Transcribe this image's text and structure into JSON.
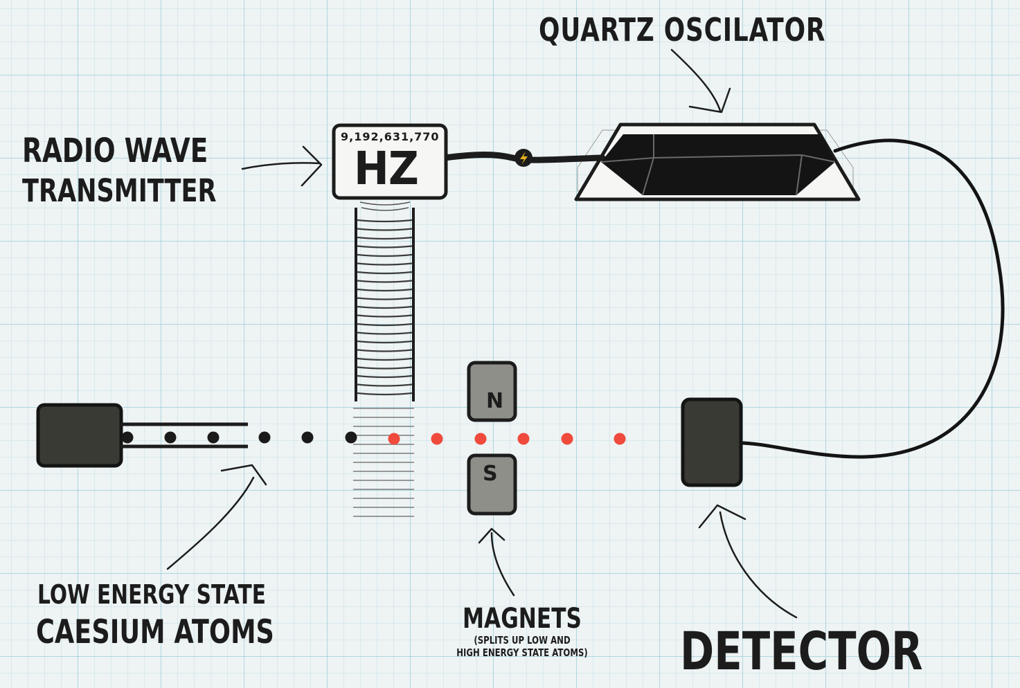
{
  "transmitter": {
    "label_line1": "RADIO WAVE",
    "label_line2": "TRANSMITTER",
    "frequency": "9,192,631,770",
    "unit": "HZ"
  },
  "oscillator": {
    "label": "QUARTZ OSCILATOR"
  },
  "atoms": {
    "label_line1": "LOW ENERGY STATE",
    "label_line2": "CAESIUM ATOMS"
  },
  "magnets": {
    "label": "MAGNETS",
    "note_line1": "(SPLITS UP LOW AND",
    "note_line2": "HIGH ENERGY STATE ATOMS)",
    "north": "N",
    "south": "S"
  },
  "detector": {
    "label": "DETECTOR"
  },
  "colors": {
    "ink": "#1c1c1c",
    "device_fill": "#3a3a34",
    "magnet_fill": "#8f8f8a",
    "atom_low": "#1a1a1a",
    "atom_high": "#ef4a3b",
    "wave_line": "#3c3c3c",
    "grid": "#8cc8d4",
    "bolt": "#e8b21e"
  }
}
